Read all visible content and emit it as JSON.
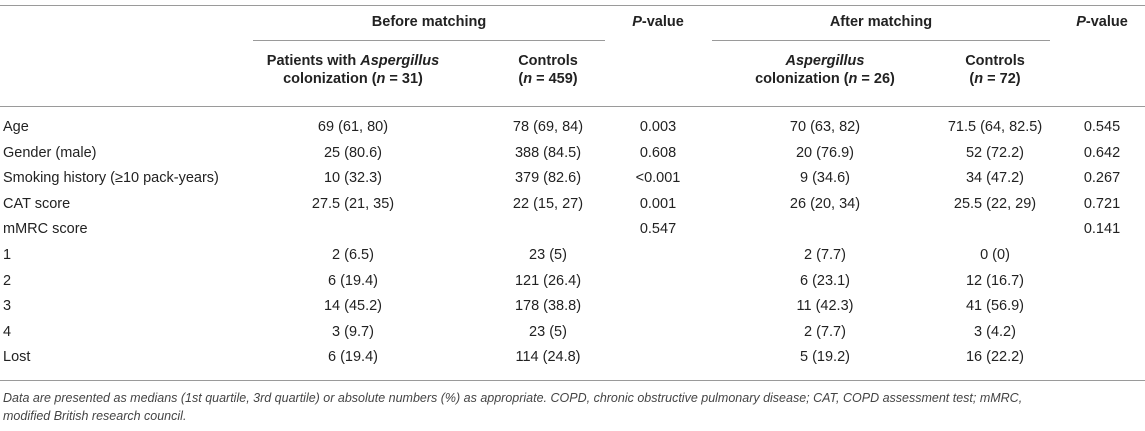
{
  "header": {
    "before_matching": "Before matching",
    "after_matching": "After matching",
    "p_value_1": {
      "italic": "P",
      "rest": "-value"
    },
    "p_value_2": {
      "italic": "P",
      "rest": "-value"
    },
    "col_before_patients": {
      "line1_pre": "Patients with ",
      "line1_italic": "Aspergillus",
      "line2_pre": "colonization (",
      "line2_italic": "n",
      "line2_post": " = 31)"
    },
    "col_before_controls": {
      "line1": "Controls",
      "line2_pre": "(",
      "line2_italic": "n",
      "line2_post": " = 459)"
    },
    "col_after_patients": {
      "line1_italic": "Aspergillus",
      "line2_pre": "colonization (",
      "line2_italic": "n",
      "line2_post": " = 26)"
    },
    "col_after_controls": {
      "line1": "Controls",
      "line2_pre": "(",
      "line2_italic": "n",
      "line2_post": " = 72)"
    }
  },
  "rows": [
    {
      "label": "Age",
      "b_pat": "69 (61, 80)",
      "b_ctl": "78 (69, 84)",
      "p1": "0.003",
      "a_pat": "70 (63, 82)",
      "a_ctl": "71.5 (64, 82.5)",
      "p2": "0.545"
    },
    {
      "label": "Gender (male)",
      "b_pat": "25 (80.6)",
      "b_ctl": "388 (84.5)",
      "p1": "0.608",
      "a_pat": "20 (76.9)",
      "a_ctl": "52 (72.2)",
      "p2": "0.642"
    },
    {
      "label": "Smoking history (≥10 pack-years)",
      "b_pat": "10 (32.3)",
      "b_ctl": "379 (82.6)",
      "p1": "<0.001",
      "a_pat": "9 (34.6)",
      "a_ctl": "34 (47.2)",
      "p2": "0.267"
    },
    {
      "label": "CAT score",
      "b_pat": "27.5 (21, 35)",
      "b_ctl": "22 (15, 27)",
      "p1": "0.001",
      "a_pat": "26 (20, 34)",
      "a_ctl": "25.5 (22, 29)",
      "p2": "0.721"
    },
    {
      "label": "mMRC score",
      "b_pat": "",
      "b_ctl": "",
      "p1": "0.547",
      "a_pat": "",
      "a_ctl": "",
      "p2": "0.141"
    },
    {
      "label": "1",
      "b_pat": "2 (6.5)",
      "b_ctl": "23 (5)",
      "p1": "",
      "a_pat": "2 (7.7)",
      "a_ctl": "0 (0)",
      "p2": ""
    },
    {
      "label": "2",
      "b_pat": "6 (19.4)",
      "b_ctl": "121 (26.4)",
      "p1": "",
      "a_pat": "6 (23.1)",
      "a_ctl": "12 (16.7)",
      "p2": ""
    },
    {
      "label": "3",
      "b_pat": "14 (45.2)",
      "b_ctl": "178 (38.8)",
      "p1": "",
      "a_pat": "11 (42.3)",
      "a_ctl": "41 (56.9)",
      "p2": ""
    },
    {
      "label": "4",
      "b_pat": "3 (9.7)",
      "b_ctl": "23 (5)",
      "p1": "",
      "a_pat": "2 (7.7)",
      "a_ctl": "3 (4.2)",
      "p2": ""
    },
    {
      "label": "Lost",
      "b_pat": "6 (19.4)",
      "b_ctl": "114 (24.8)",
      "p1": "",
      "a_pat": "5 (19.2)",
      "a_ctl": "16 (22.2)",
      "p2": ""
    }
  ],
  "footnote": {
    "line1": "Data are presented as medians (1st quartile, 3rd quartile) or absolute numbers (%) as appropriate. COPD, chronic obstructive pulmonary disease; CAT, COPD assessment test; mMRC,",
    "line2": "modified British research council."
  }
}
